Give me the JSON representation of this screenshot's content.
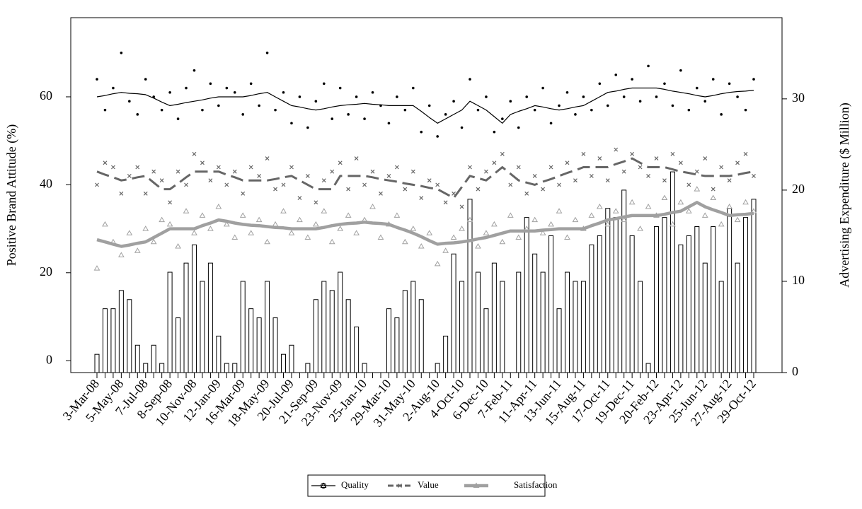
{
  "chart_data": {
    "type": "line",
    "y_label": "Positive Brand Attitude (%)",
    "y2_label": "Advertising Expenditure ($ Million)",
    "ylim": [
      -2.7,
      78
    ],
    "yticks": [
      0,
      20,
      40,
      60
    ],
    "y2lim": [
      0,
      38.9
    ],
    "y2ticks": [
      0,
      10,
      20,
      30
    ],
    "categories": [
      "3-Mar-08",
      null,
      null,
      "5-May-08",
      null,
      null,
      "7-Jul-08",
      null,
      null,
      "8-Sep-08",
      null,
      null,
      "10-Nov-08",
      null,
      null,
      "12-Jan-09",
      null,
      null,
      "16-Mar-09",
      null,
      null,
      "18-May-09",
      null,
      null,
      "20-Jul-09",
      null,
      null,
      "21-Sep-09",
      null,
      null,
      "23-Nov-09",
      null,
      null,
      "25-Jan-10",
      null,
      null,
      "29-Mar-10",
      null,
      null,
      "31-May-10",
      null,
      null,
      "2-Aug-10",
      null,
      null,
      "4-Oct-10",
      null,
      null,
      "6-Dec-10",
      null,
      null,
      "7-Feb-11",
      null,
      null,
      "11-Apr-11",
      null,
      null,
      "13-Jun-11",
      null,
      null,
      "15-Aug-11",
      null,
      null,
      "17-Oct-11",
      null,
      null,
      "19-Dec-11",
      null,
      null,
      "20-Feb-12",
      null,
      null,
      "23-Apr-12",
      null,
      null,
      "25-Jun-12",
      null,
      null,
      "27-Aug-12",
      null,
      null,
      "29-Oct-12"
    ],
    "expenditure": {
      "axis": "y2",
      "color": "#ffffff",
      "values": [
        2,
        7,
        7,
        9,
        8,
        3,
        1,
        3,
        1,
        11,
        6,
        12,
        14,
        10,
        12,
        4,
        1,
        1,
        10,
        7,
        6,
        10,
        6,
        2,
        3,
        0,
        1,
        8,
        10,
        9,
        11,
        8,
        5,
        1,
        0,
        0,
        7,
        6,
        9,
        10,
        8,
        0,
        1,
        4,
        13,
        10,
        19,
        11,
        7,
        12,
        10,
        0,
        11,
        17,
        13,
        11,
        15,
        7,
        11,
        10,
        10,
        14,
        15,
        18,
        17,
        20,
        15,
        10,
        1,
        16,
        17,
        22,
        14,
        15,
        16,
        12,
        16,
        10,
        18,
        12,
        17,
        19
      ]
    },
    "series": [
      {
        "name": "Quality",
        "color": "#000000",
        "marker": "dot",
        "values": [
          64,
          57,
          62,
          70,
          59,
          56,
          64,
          60,
          57,
          61,
          55,
          62,
          66,
          57,
          63,
          58,
          62,
          61,
          56,
          63,
          58,
          70,
          57,
          61,
          54,
          60,
          53,
          59,
          63,
          55,
          62,
          56,
          60,
          55,
          61,
          58,
          54,
          60,
          57,
          62,
          52,
          58,
          51,
          56,
          59,
          53,
          64,
          57,
          60,
          52,
          55,
          59,
          53,
          60,
          57,
          62,
          54,
          58,
          61,
          56,
          60,
          57,
          63,
          58,
          65,
          60,
          64,
          59,
          67,
          60,
          63,
          58,
          66,
          57,
          62,
          59,
          64,
          56,
          63,
          60,
          57,
          64
        ],
        "trend": [
          60,
          60.3,
          60.7,
          61,
          60.8,
          60.7,
          60.5,
          59.7,
          58.8,
          58,
          58.3,
          58.7,
          59,
          59.3,
          59.7,
          60,
          60,
          60,
          60,
          60.3,
          60.7,
          61,
          60,
          59,
          58,
          57.7,
          57.3,
          57,
          57.3,
          57.7,
          58,
          58.2,
          58.3,
          58.5,
          58.3,
          58.2,
          58,
          58,
          58,
          58,
          56.7,
          55.3,
          54,
          55,
          56,
          57,
          59,
          58,
          57,
          55.5,
          54,
          56,
          56.7,
          57.3,
          58,
          57.7,
          57.3,
          57,
          57.3,
          57.7,
          58,
          59,
          60,
          61,
          61.3,
          61.7,
          62,
          62,
          62,
          62,
          61.7,
          61.3,
          61,
          60.7,
          60.3,
          60,
          60.3,
          60.7,
          61,
          61.2,
          61.3,
          61.5
        ]
      },
      {
        "name": "Value",
        "color": "#666666",
        "marker": "x",
        "values": [
          40,
          45,
          44,
          38,
          42,
          44,
          38,
          43,
          41,
          36,
          43,
          40,
          47,
          45,
          41,
          44,
          40,
          43,
          38,
          44,
          42,
          46,
          39,
          40,
          44,
          37,
          42,
          36,
          41,
          43,
          45,
          39,
          46,
          40,
          43,
          38,
          42,
          44,
          39,
          43,
          37,
          41,
          40,
          36,
          38,
          35,
          44,
          39,
          43,
          45,
          47,
          40,
          44,
          38,
          42,
          39,
          44,
          40,
          45,
          41,
          47,
          42,
          46,
          41,
          48,
          43,
          47,
          44,
          42,
          46,
          41,
          47,
          45,
          40,
          43,
          46,
          39,
          44,
          41,
          45,
          47,
          42
        ],
        "trend": [
          43,
          42.3,
          41.7,
          41,
          41.3,
          41.7,
          42,
          40.5,
          39,
          39,
          40.3,
          41.7,
          43,
          43,
          43,
          43,
          42.3,
          41.7,
          41,
          41,
          41,
          41,
          41.3,
          41.7,
          42,
          41,
          40,
          39,
          39,
          39,
          42,
          42,
          42,
          42,
          41.7,
          41.3,
          41,
          40.7,
          40.3,
          40,
          39.7,
          39.3,
          39,
          38,
          37,
          39.5,
          42,
          41.5,
          41,
          42.5,
          44,
          42.5,
          41,
          40.5,
          40,
          40.7,
          41.3,
          42,
          42.7,
          43.3,
          44,
          44,
          44,
          44,
          44.7,
          45.3,
          46,
          45,
          44,
          44,
          44,
          43.5,
          43,
          42.7,
          42.3,
          42,
          42,
          42,
          42,
          42.3,
          42.7,
          43
        ]
      },
      {
        "name": "Satisfaction",
        "color": "#a0a0a0",
        "marker": "triangle",
        "values": [
          21,
          31,
          27,
          24,
          29,
          25,
          30,
          27,
          32,
          31,
          26,
          34,
          29,
          33,
          30,
          35,
          31,
          28,
          33,
          29,
          32,
          27,
          31,
          34,
          29,
          32,
          28,
          31,
          34,
          27,
          30,
          33,
          29,
          32,
          35,
          28,
          31,
          33,
          27,
          30,
          26,
          29,
          22,
          25,
          28,
          30,
          32,
          26,
          29,
          31,
          27,
          33,
          28,
          30,
          32,
          29,
          31,
          34,
          28,
          32,
          30,
          33,
          35,
          31,
          34,
          32,
          36,
          30,
          35,
          33,
          37,
          31,
          36,
          34,
          39,
          33,
          37,
          31,
          35,
          32,
          36,
          34
        ],
        "trend": [
          27.5,
          27,
          26.5,
          26,
          26.3,
          26.7,
          27,
          28,
          29,
          30,
          30,
          30,
          30,
          30.7,
          31.3,
          32,
          31.7,
          31.3,
          31,
          30.8,
          30.7,
          30.5,
          30.3,
          30.2,
          30,
          30,
          30,
          30,
          30.3,
          30.7,
          31,
          31.2,
          31.3,
          31.5,
          31.3,
          31.2,
          31,
          30.3,
          29.7,
          29,
          28.2,
          27.3,
          26.5,
          26.7,
          26.8,
          27,
          27.3,
          27.7,
          28,
          28.5,
          29,
          29.5,
          29.5,
          29.5,
          29.5,
          29.7,
          29.8,
          30,
          30,
          30,
          30,
          30.7,
          31.3,
          32,
          32.3,
          32.7,
          33,
          33,
          33,
          33,
          33.3,
          33.7,
          34,
          35,
          36,
          35,
          34.3,
          33.7,
          33,
          33.2,
          33.3,
          33.5
        ]
      }
    ]
  }
}
